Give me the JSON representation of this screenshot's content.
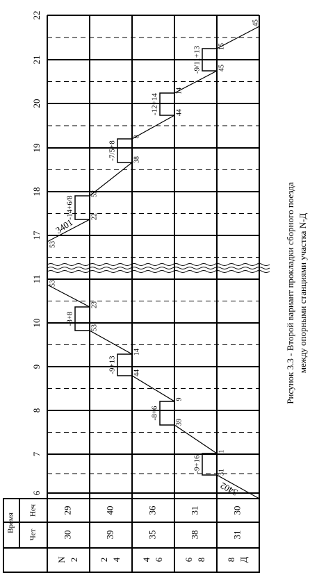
{
  "time_header": "Время",
  "odd_header": "Неч",
  "even_header": "Чет",
  "hours": [
    6,
    7,
    8,
    9,
    10,
    11,
    17,
    18,
    19,
    20,
    21,
    22
  ],
  "spans": [
    {
      "stations": [
        "N",
        "2"
      ],
      "odd": 29,
      "even": 30
    },
    {
      "stations": [
        "2",
        "4"
      ],
      "odd": 40,
      "even": 39
    },
    {
      "stations": [
        "4",
        "6"
      ],
      "odd": 36,
      "even": 35
    },
    {
      "stations": [
        "6",
        "8"
      ],
      "odd": 31,
      "even": 38
    },
    {
      "stations": [
        "8",
        "Д"
      ],
      "odd": 30,
      "even": 31
    }
  ],
  "trains": [
    "3402",
    "3401"
  ],
  "stops": [
    {
      "label": "-9+16",
      "arrive": 31,
      "depart": 1
    },
    {
      "label": "-8+6",
      "arrive": 39,
      "depart": 9
    },
    {
      "label": "-9+13",
      "arrive": 44,
      "depart": 14
    },
    {
      "label": "-8+8",
      "arrive": 53,
      "depart": 23
    },
    {
      "label": "-14+6/8",
      "arrive": 22,
      "depart": 52
    },
    {
      "label": "-7/5+8",
      "arrive": 38,
      "depart": 8
    },
    {
      "label": "-12+14",
      "arrive": 44,
      "depart": 14
    },
    {
      "label": "-9/11+13",
      "arrive": 45,
      "depart": 15
    }
  ],
  "terminal_minutes": [
    53,
    53,
    45
  ],
  "caption": [
    "Рисунок 3.3 - Второй вариант прокладки сборного поезда",
    "между опорными станциями участка N-Д"
  ]
}
